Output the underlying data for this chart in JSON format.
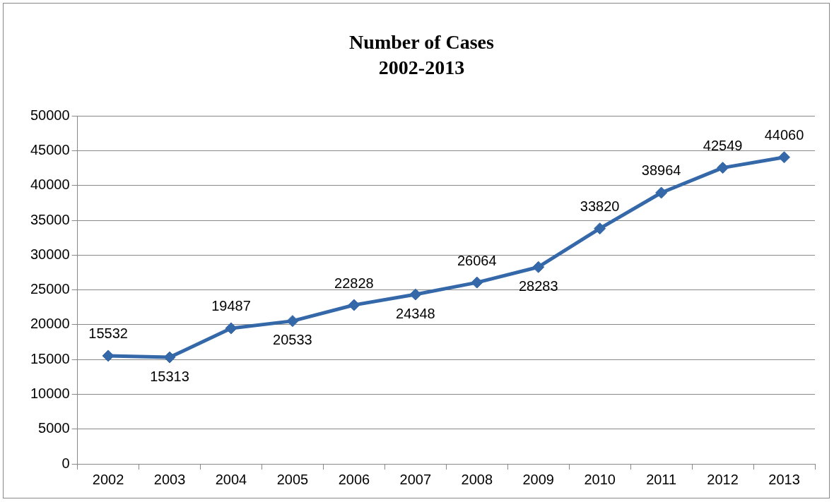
{
  "chart_data": {
    "type": "line",
    "title": "Number of Cases",
    "subtitle": "2002-2013",
    "categories": [
      "2002",
      "2003",
      "2004",
      "2005",
      "2006",
      "2007",
      "2008",
      "2009",
      "2010",
      "2011",
      "2012",
      "2013"
    ],
    "series": [
      {
        "color": "#3468a8",
        "values": [
          15532,
          15313,
          19487,
          20533,
          22828,
          24348,
          26064,
          28283,
          33820,
          38964,
          42549,
          44060
        ]
      }
    ],
    "ylim": [
      0,
      50000
    ],
    "yticks": [
      0,
      5000,
      10000,
      15000,
      20000,
      25000,
      30000,
      35000,
      40000,
      45000,
      50000
    ],
    "grid": "y",
    "legend": false,
    "marker": "diamond",
    "line_style": "solid",
    "data_labels": true
  }
}
